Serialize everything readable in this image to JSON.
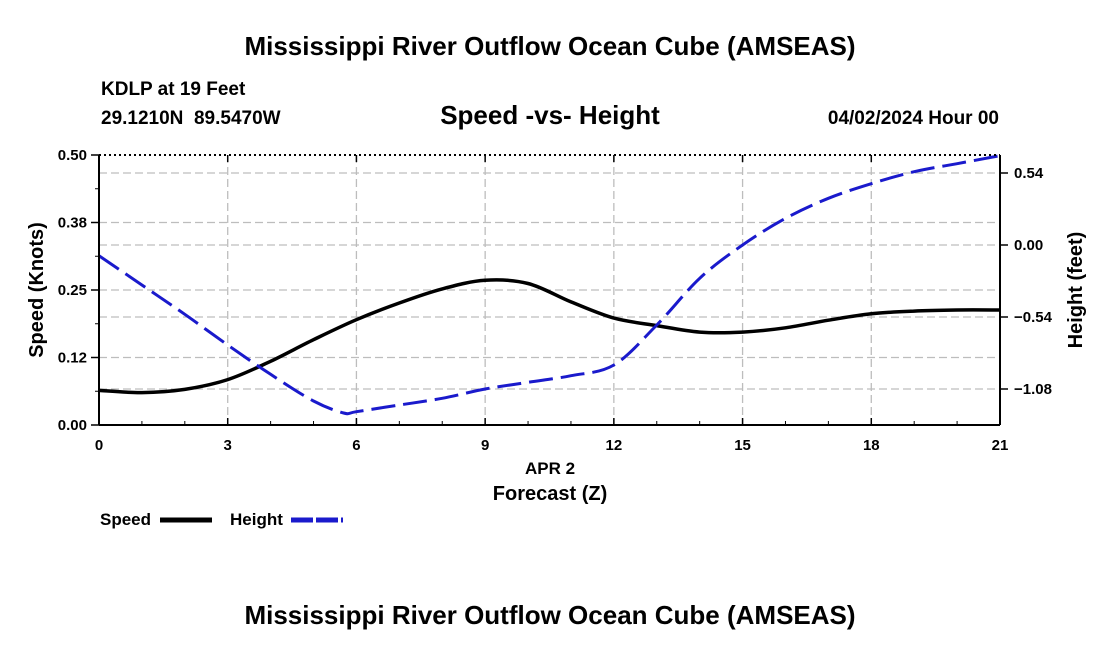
{
  "header": {
    "title": "Mississippi River Outflow Ocean Cube (AMSEAS)",
    "station": "KDLP at 19 Feet",
    "coords": "29.1210N  89.5470W",
    "chart_title": "Speed -vs- Height",
    "datetime": "04/02/2024 Hour 00"
  },
  "footer": {
    "title": "Mississippi River Outflow Ocean Cube (AMSEAS)"
  },
  "colors": {
    "speed": "#000000",
    "height": "#1a1acc",
    "grid": "#bdbdbd"
  },
  "chart_data": {
    "type": "line",
    "title": "Speed -vs- Height",
    "xlabel_date": "APR 2",
    "xlabel": "Forecast (Z)",
    "ylabel": "Speed (Knots)",
    "ylabel_right": "Height (feet)",
    "xlim": [
      0,
      21
    ],
    "ylim": [
      0,
      0.5
    ],
    "ylim_right": [
      -1.35,
      0.675
    ],
    "x_ticks": [
      0,
      3,
      6,
      9,
      12,
      15,
      18,
      21
    ],
    "y_ticks": [
      "0.00",
      "0.12",
      "0.25",
      "0.38",
      "0.50"
    ],
    "y_tick_values": [
      0,
      0.125,
      0.25,
      0.375,
      0.5
    ],
    "y_right_ticks": [
      "0.54",
      "0.00",
      "−0.54",
      "−1.08"
    ],
    "y_right_tick_values": [
      0.54,
      0,
      -0.54,
      -1.08
    ],
    "series": [
      {
        "name": "Speed",
        "axis": "left",
        "x": [
          0,
          1,
          2,
          3,
          4,
          5,
          6,
          7,
          8,
          9,
          10,
          11,
          12,
          13,
          14,
          15,
          16,
          17,
          18,
          19,
          20,
          21
        ],
        "values": [
          0.064,
          0.06,
          0.066,
          0.084,
          0.118,
          0.158,
          0.195,
          0.226,
          0.252,
          0.268,
          0.262,
          0.228,
          0.198,
          0.184,
          0.172,
          0.172,
          0.18,
          0.194,
          0.206,
          0.211,
          0.213,
          0.213
        ]
      },
      {
        "name": "Height",
        "axis": "right",
        "x": [
          0,
          1,
          2,
          3,
          4,
          5,
          5.7,
          6,
          7,
          8,
          9,
          10,
          11,
          12,
          13,
          14,
          15,
          16,
          17,
          18,
          19,
          20,
          21
        ],
        "values": [
          -0.08,
          -0.3,
          -0.52,
          -0.75,
          -0.97,
          -1.17,
          -1.26,
          -1.25,
          -1.2,
          -1.15,
          -1.08,
          -1.03,
          -0.98,
          -0.9,
          -0.6,
          -0.25,
          0.0,
          0.2,
          0.35,
          0.46,
          0.55,
          0.61,
          0.67
        ]
      }
    ],
    "legend": [
      "Speed",
      "Height"
    ],
    "legend_position": "bottom-left"
  }
}
